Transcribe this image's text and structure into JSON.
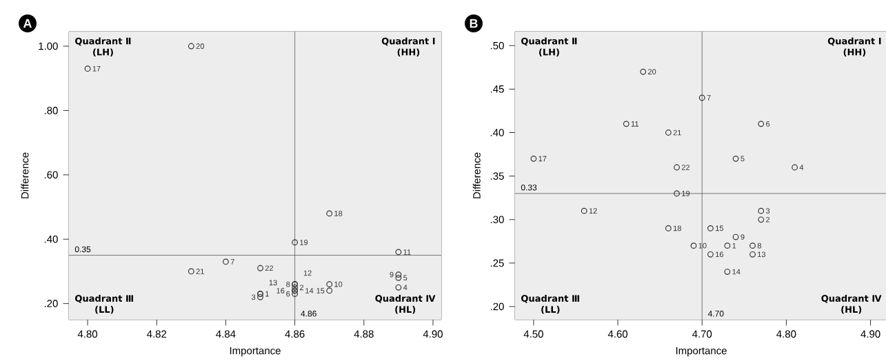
{
  "chart_data": [
    {
      "type": "scatter",
      "title": "A",
      "xlabel": "Importance",
      "ylabel": "Difference",
      "marker": "circle",
      "color": "#333333",
      "series": [
        {
          "name": "1",
          "x": [
            4.85
          ],
          "values": [
            0.23
          ]
        },
        {
          "name": "2",
          "x": [
            4.86
          ],
          "values": [
            0.25
          ]
        },
        {
          "name": "3",
          "x": [
            4.85
          ],
          "values": [
            0.22
          ]
        },
        {
          "name": "4",
          "x": [
            4.89
          ],
          "values": [
            0.25
          ]
        },
        {
          "name": "5",
          "x": [
            4.89
          ],
          "values": [
            0.28
          ]
        },
        {
          "name": "6",
          "x": [
            4.86
          ],
          "values": [
            0.23
          ]
        },
        {
          "name": "7",
          "x": [
            4.84
          ],
          "values": [
            0.33
          ]
        },
        {
          "name": "8",
          "x": [
            4.86
          ],
          "values": [
            0.26
          ]
        },
        {
          "name": "9",
          "x": [
            4.89
          ],
          "values": [
            0.29
          ]
        },
        {
          "name": "10",
          "x": [
            4.87
          ],
          "values": [
            0.26
          ]
        },
        {
          "name": "11",
          "x": [
            4.89
          ],
          "values": [
            0.36
          ]
        },
        {
          "name": "12",
          "x": [
            4.86
          ],
          "values": [
            0.26
          ]
        },
        {
          "name": "13",
          "x": [
            4.85
          ],
          "values": [
            0.23
          ]
        },
        {
          "name": "14",
          "x": [
            4.86
          ],
          "values": [
            0.24
          ]
        },
        {
          "name": "15",
          "x": [
            4.87
          ],
          "values": [
            0.24
          ]
        },
        {
          "name": "16",
          "x": [
            4.86
          ],
          "values": [
            0.24
          ]
        },
        {
          "name": "17",
          "x": [
            4.8
          ],
          "values": [
            0.93
          ]
        },
        {
          "name": "18",
          "x": [
            4.87
          ],
          "values": [
            0.48
          ]
        },
        {
          "name": "19",
          "x": [
            4.86
          ],
          "values": [
            0.39
          ]
        },
        {
          "name": "20",
          "x": [
            4.83
          ],
          "values": [
            1.0
          ]
        },
        {
          "name": "21",
          "x": [
            4.83
          ],
          "values": [
            0.3
          ]
        },
        {
          "name": "22",
          "x": [
            4.85
          ],
          "values": [
            0.31
          ]
        }
      ],
      "xlim": [
        4.7946,
        4.9024
      ],
      "ylim": [
        0.15,
        1.045
      ],
      "xticks": [
        {
          "value": 4.8,
          "label": "4.80"
        },
        {
          "value": 4.82,
          "label": "4.82"
        },
        {
          "value": 4.84,
          "label": "4.84"
        },
        {
          "value": 4.86,
          "label": "4.86"
        },
        {
          "value": 4.88,
          "label": "4.88"
        },
        {
          "value": 4.9,
          "label": "4.90"
        }
      ],
      "yticks": [
        {
          "value": 0.2,
          "label": ".20"
        },
        {
          "value": 0.4,
          "label": ".40"
        },
        {
          "value": 0.6,
          "label": ".60"
        },
        {
          "value": 0.8,
          "label": ".80"
        },
        {
          "value": 1.0,
          "label": "1.00"
        }
      ],
      "ref_lines": [
        {
          "axis": "x",
          "value": 4.86,
          "label": "4.86",
          "color": "#555555"
        },
        {
          "axis": "y",
          "value": 0.35,
          "label": "0.35",
          "color": "#555555"
        }
      ],
      "annotations": [
        "Quadrant Ⅱ",
        "(LH)",
        "Quadrant Ⅰ",
        "(HH)",
        "Quadrant Ⅲ",
        "(LL)",
        "Quadrant Ⅳ",
        "(HL)"
      ]
    },
    {
      "type": "scatter",
      "title": "B",
      "xlabel": "Importance",
      "ylabel": "Difference",
      "marker": "circle",
      "color": "#333333",
      "series": [
        {
          "name": "1",
          "x": [
            4.73
          ],
          "values": [
            0.27
          ]
        },
        {
          "name": "2",
          "x": [
            4.77
          ],
          "values": [
            0.3
          ]
        },
        {
          "name": "3",
          "x": [
            4.77
          ],
          "values": [
            0.31
          ]
        },
        {
          "name": "4",
          "x": [
            4.81
          ],
          "values": [
            0.36
          ]
        },
        {
          "name": "5",
          "x": [
            4.74
          ],
          "values": [
            0.37
          ]
        },
        {
          "name": "6",
          "x": [
            4.77
          ],
          "values": [
            0.41
          ]
        },
        {
          "name": "7",
          "x": [
            4.7
          ],
          "values": [
            0.44
          ]
        },
        {
          "name": "8",
          "x": [
            4.76
          ],
          "values": [
            0.27
          ]
        },
        {
          "name": "9",
          "x": [
            4.74
          ],
          "values": [
            0.28
          ]
        },
        {
          "name": "10",
          "x": [
            4.69
          ],
          "values": [
            0.27
          ]
        },
        {
          "name": "11",
          "x": [
            4.61
          ],
          "values": [
            0.41
          ]
        },
        {
          "name": "12",
          "x": [
            4.56
          ],
          "values": [
            0.31
          ]
        },
        {
          "name": "13",
          "x": [
            4.76
          ],
          "values": [
            0.26
          ]
        },
        {
          "name": "14",
          "x": [
            4.73
          ],
          "values": [
            0.24
          ]
        },
        {
          "name": "15",
          "x": [
            4.71
          ],
          "values": [
            0.29
          ]
        },
        {
          "name": "16",
          "x": [
            4.71
          ],
          "values": [
            0.26
          ]
        },
        {
          "name": "17",
          "x": [
            4.5
          ],
          "values": [
            0.37
          ]
        },
        {
          "name": "18",
          "x": [
            4.66
          ],
          "values": [
            0.29
          ]
        },
        {
          "name": "19",
          "x": [
            4.67
          ],
          "values": [
            0.33
          ]
        },
        {
          "name": "20",
          "x": [
            4.63
          ],
          "values": [
            0.47
          ]
        },
        {
          "name": "21",
          "x": [
            4.66
          ],
          "values": [
            0.4
          ]
        },
        {
          "name": "22",
          "x": [
            4.67
          ],
          "values": [
            0.36
          ]
        }
      ],
      "xlim": [
        4.478,
        4.92
      ],
      "ylim": [
        0.185,
        0.516
      ],
      "xticks": [
        {
          "value": 4.5,
          "label": "4.50"
        },
        {
          "value": 4.6,
          "label": "4.60"
        },
        {
          "value": 4.7,
          "label": "4.70"
        },
        {
          "value": 4.8,
          "label": "4.80"
        },
        {
          "value": 4.9,
          "label": "4.90"
        }
      ],
      "yticks": [
        {
          "value": 0.2,
          "label": ".20"
        },
        {
          "value": 0.25,
          "label": ".25"
        },
        {
          "value": 0.3,
          "label": ".30"
        },
        {
          "value": 0.35,
          "label": ".35"
        },
        {
          "value": 0.4,
          "label": ".40"
        },
        {
          "value": 0.45,
          "label": ".45"
        },
        {
          "value": 0.5,
          "label": ".50"
        }
      ],
      "ref_lines": [
        {
          "axis": "x",
          "value": 4.7,
          "label": "4.70",
          "color": "#555555"
        },
        {
          "axis": "y",
          "value": 0.33,
          "label": "0.33",
          "color": "#555555"
        }
      ],
      "annotations": [
        "Quadrant Ⅱ",
        "(LH)",
        "Quadrant Ⅰ",
        "(HH)",
        "Quadrant Ⅲ",
        "(LL)",
        "Quadrant Ⅳ",
        "(HL)"
      ]
    }
  ]
}
